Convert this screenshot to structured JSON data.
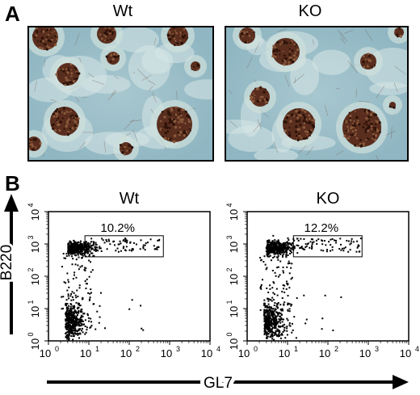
{
  "panel_a": {
    "letter": "A",
    "images": [
      {
        "label": "Wt"
      },
      {
        "label": "KO"
      }
    ]
  },
  "panel_b": {
    "letter": "B",
    "y_axis_label": "B220",
    "x_axis_label": "GL7",
    "tick_labels": {
      "x": [
        {
          "base": "10",
          "exp": "0"
        },
        {
          "base": "10",
          "exp": "1"
        },
        {
          "base": "10",
          "exp": "2"
        },
        {
          "base": "10",
          "exp": "3"
        },
        {
          "base": "10",
          "exp": "4"
        }
      ],
      "y": [
        {
          "base": "10",
          "exp": "0"
        },
        {
          "base": "10",
          "exp": "1"
        },
        {
          "base": "10",
          "exp": "2"
        },
        {
          "base": "10",
          "exp": "3"
        },
        {
          "base": "10",
          "exp": "4"
        }
      ]
    }
  },
  "chart_data": [
    {
      "type": "scatter",
      "title": "Wt",
      "xlabel": "GL7",
      "ylabel": "B220",
      "xscale": "log",
      "yscale": "log",
      "xlim": [
        1,
        10000
      ],
      "ylim": [
        1,
        10000
      ],
      "gate": {
        "x": [
          8,
          700
        ],
        "y": [
          400,
          1800
        ],
        "percent_label": "10.2%"
      }
    },
    {
      "type": "scatter",
      "title": "KO",
      "xlabel": "GL7",
      "ylabel": "B220",
      "xscale": "log",
      "yscale": "log",
      "xlim": [
        1,
        10000
      ],
      "ylim": [
        1,
        10000
      ],
      "gate": {
        "x": [
          14,
          700
        ],
        "y": [
          400,
          1800
        ],
        "percent_label": "12.2%"
      }
    }
  ]
}
